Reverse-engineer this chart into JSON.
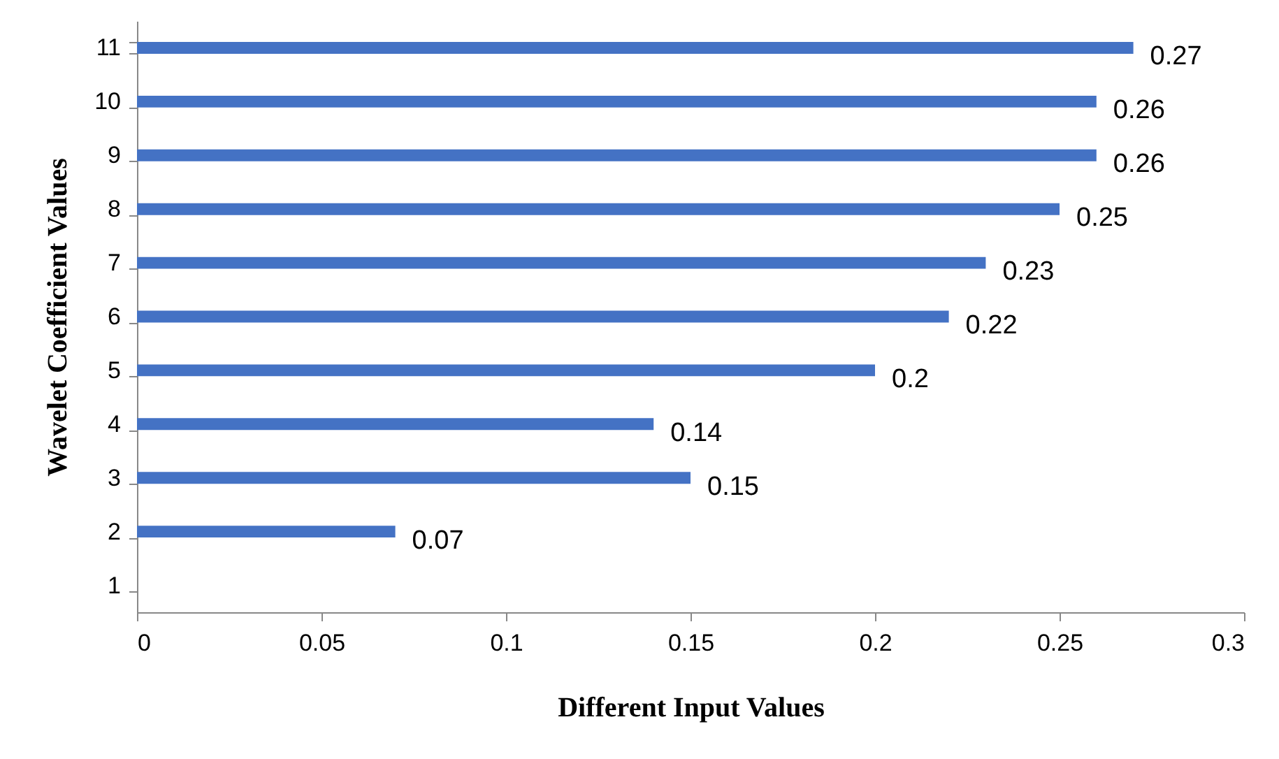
{
  "chart_data": {
    "type": "bar",
    "orientation": "horizontal",
    "xlabel": "Different Input Values",
    "ylabel": "Wavelet Coefficient Values",
    "categories": [
      "11",
      "10",
      "9",
      "8",
      "7",
      "6",
      "5",
      "4",
      "3",
      "2",
      "1"
    ],
    "values": [
      0.27,
      0.26,
      0.26,
      0.25,
      0.23,
      0.22,
      0.2,
      0.14,
      0.15,
      0.07,
      null
    ],
    "color": "#4472c4",
    "data_labels": true,
    "xlim": [
      0,
      0.3
    ],
    "xticks": [
      0,
      0.05,
      0.1,
      0.15,
      0.2,
      0.25,
      0.3
    ]
  }
}
